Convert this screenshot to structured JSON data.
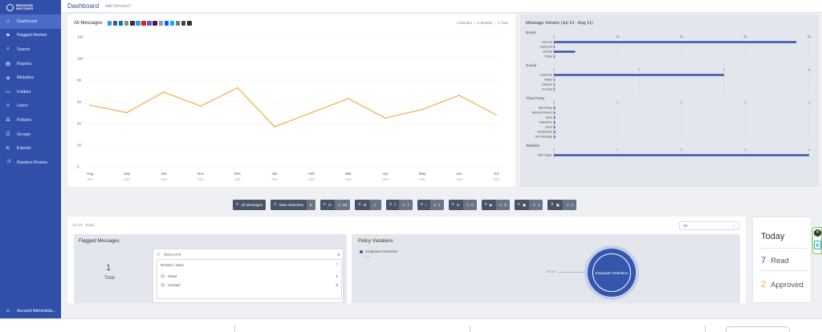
{
  "brand": {
    "line1": "MESSAGE",
    "line2": "WATCHER"
  },
  "sidebar": {
    "items": [
      {
        "label": "Dashboard",
        "icon": "⌂",
        "iconName": "dashboard-icon"
      },
      {
        "label": "Flagged Review",
        "icon": "⚑",
        "iconName": "flag-icon"
      },
      {
        "label": "Search",
        "icon": "⌕",
        "iconName": "search-icon"
      },
      {
        "label": "Reports",
        "icon": "▤",
        "iconName": "reports-icon"
      },
      {
        "label": "Websites",
        "icon": "⊕",
        "iconName": "globe-icon"
      },
      {
        "label": "Folders",
        "icon": "▭",
        "iconName": "folder-icon"
      },
      {
        "label": "Users",
        "icon": "☺",
        "iconName": "user-icon"
      },
      {
        "label": "Policies",
        "icon": "⚖",
        "iconName": "policies-icon"
      },
      {
        "label": "Groups",
        "icon": "☷",
        "iconName": "groups-icon"
      },
      {
        "label": "Exports",
        "icon": "⇱",
        "iconName": "export-icon"
      },
      {
        "label": "Random Review",
        "icon": "⤨",
        "iconName": "shuffle-icon"
      }
    ],
    "account": "Account Administra..."
  },
  "header": {
    "title": "Dashboard",
    "add_services": "Add Services?"
  },
  "main": {
    "all_messages": "All Messages",
    "ranges": [
      "3 Months",
      "6 Months",
      "1 Year"
    ],
    "source_icon_colors": [
      "#1da1f2",
      "#3b5998",
      "#0077b5",
      "#888888",
      "#333333",
      "#1da1f2",
      "#e62117",
      "#5b5fc7",
      "#4a154b",
      "#999999",
      "#0061ff",
      "#00aff0",
      "#777777",
      "#444444",
      "#333333"
    ]
  },
  "chart_data": [
    {
      "type": "line",
      "categories": [
        "Aug",
        "Sep",
        "Oct",
        "Nov",
        "Dec",
        "Jan",
        "Feb",
        "Mar",
        "Apr",
        "May",
        "Jun",
        "Jul"
      ],
      "sublabels": [
        "2002",
        "2002",
        "2002",
        "2002",
        "2002",
        "2003",
        "2003",
        "2003",
        "2003",
        "2003",
        "2003",
        "2003"
      ],
      "values": [
        57,
        50,
        69,
        56,
        73,
        37,
        50,
        63,
        45,
        53,
        66,
        48
      ],
      "ylim": [
        0,
        120
      ],
      "yticks": [
        0,
        20,
        40,
        60,
        80,
        100,
        120
      ],
      "grid": true,
      "color": "#f2a63b"
    },
    {
      "type": "bar",
      "orientation": "horizontal",
      "title": "Message Volume (Jul 13 - Aug 11)",
      "groups": [
        {
          "name": "Email",
          "max": 60,
          "ticks": [
            0,
            15,
            30,
            45,
            60
          ],
          "categories": [
            "Inbound",
            "Outbound",
            "Internal",
            "*Other"
          ],
          "values": [
            57,
            0.2,
            5,
            0.2
          ]
        },
        {
          "name": "Social",
          "max": 6,
          "ticks": [
            0,
            2,
            4,
            6
          ],
          "categories": [
            "Facebook",
            "Twitter",
            "LinkedIn",
            "YouTube"
          ],
          "values": [
            4,
            0.02,
            0.02,
            0.02
          ]
        },
        {
          "name": "Third Party",
          "max": 4,
          "ticks": [
            0,
            1,
            2,
            3,
            4
          ],
          "categories": [
            "Bloomberg",
            "Microsoft Teams",
            "Slack",
            "Salesforce",
            "Zoom",
            "RingCentral",
            "Text Message"
          ],
          "values": [
            0.02,
            0.02,
            0.02,
            0.02,
            0.02,
            0.02,
            0.02
          ]
        },
        {
          "name": "Website",
          "max": 4,
          "ticks": [
            0,
            1,
            2,
            3,
            4
          ],
          "categories": [
            "Web Pages"
          ],
          "values": [
            4
          ]
        }
      ],
      "color": "#3556ad"
    }
  ],
  "filters": [
    {
      "label": "All Messages",
      "value": "",
      "kind": "search"
    },
    {
      "label": "Save Searches",
      "value": "0",
      "kind": "search"
    },
    {
      "label": "",
      "value": "54",
      "kind": "email"
    },
    {
      "label": "",
      "value": "",
      "kind": "globe"
    },
    {
      "label": "",
      "value": "2",
      "kind": "facebook"
    },
    {
      "label": "",
      "value": "1",
      "kind": "twitter"
    },
    {
      "label": "",
      "value": "0",
      "kind": "linkedin"
    },
    {
      "label": "",
      "value": "0",
      "kind": "youtube"
    },
    {
      "label": "",
      "value": "1",
      "kind": "other"
    },
    {
      "label": "",
      "value": "1",
      "kind": "chat"
    }
  ],
  "bottom": {
    "date_range": "Jul 13 - Today",
    "dropdown": "All",
    "flagged": {
      "title": "Flagged Messages",
      "count": "1",
      "total_label": "Total",
      "approved_label": "Approved",
      "approved_count": "0",
      "review_title": "Review / Save",
      "read_label": "Read",
      "read_count": "1",
      "unread_label": "Unread",
      "unread_count": "0"
    },
    "policy": {
      "title": "Policy Violations",
      "legend": "Employee Retention",
      "legend_sub": "1 / 1",
      "donut_label": "Employee Retention",
      "pct": "100.0%"
    }
  },
  "today": {
    "title": "Today",
    "read_count": "7",
    "read_label": "Read",
    "approved_count": "2",
    "approved_label": "Approved",
    "read_color": "#3556ad",
    "approved_color": "#f2a63b"
  }
}
